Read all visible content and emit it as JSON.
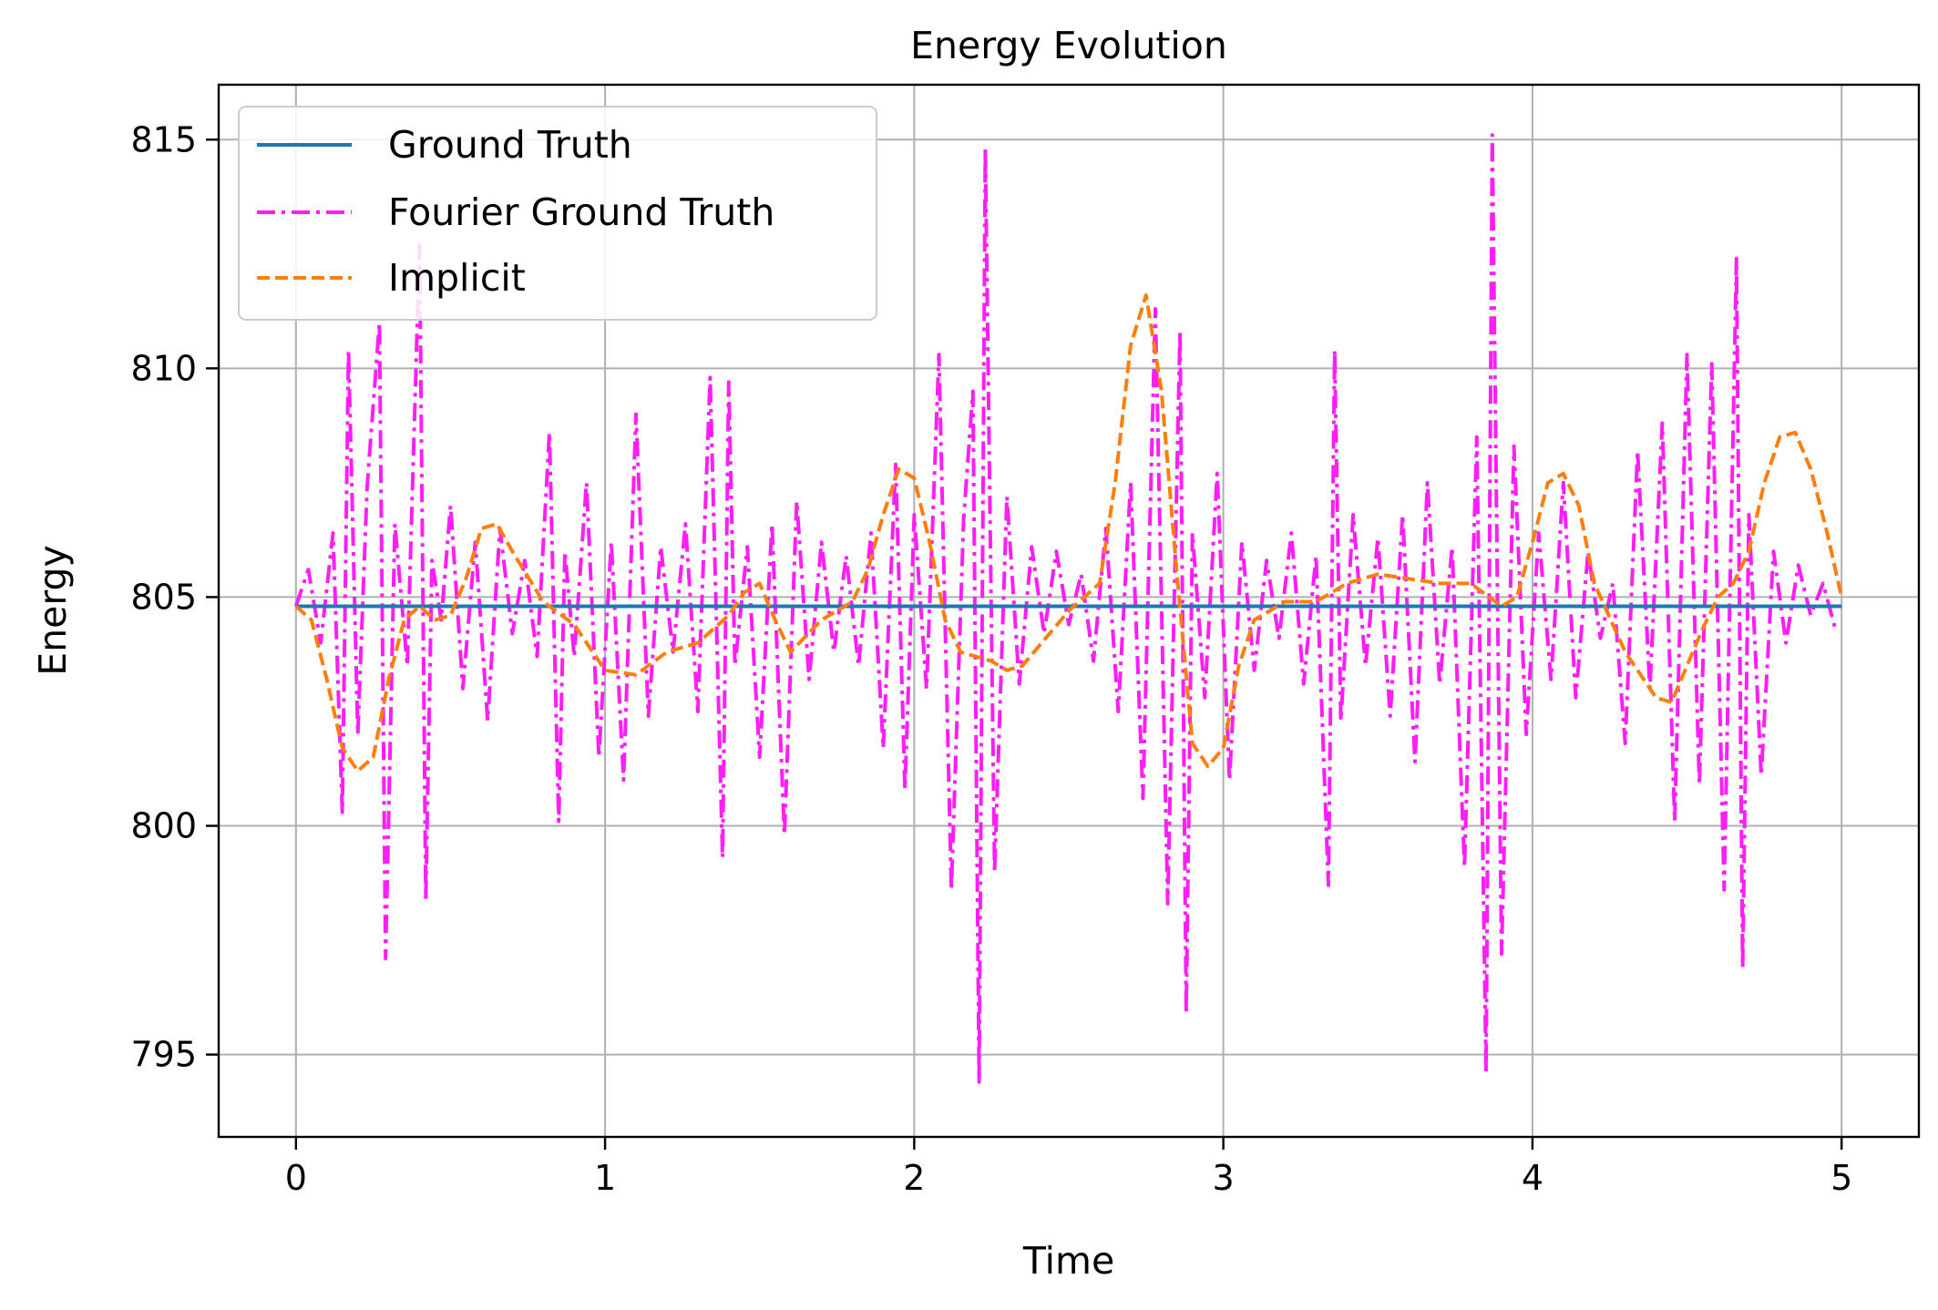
{
  "chart_data": {
    "type": "line",
    "title": "Energy Evolution",
    "xlabel": "Time",
    "ylabel": "Energy",
    "xlim": [
      -0.25,
      5.25
    ],
    "ylim": [
      793.2,
      816.2
    ],
    "xticks": [
      0,
      1,
      2,
      3,
      4,
      5
    ],
    "yticks": [
      795,
      800,
      805,
      810,
      815
    ],
    "grid": true,
    "legend_position": "upper-left",
    "series": [
      {
        "name": "Ground Truth",
        "color": "#1f77b4",
        "style": "solid",
        "x": [
          0,
          5
        ],
        "y": [
          804.8,
          804.8
        ]
      },
      {
        "name": "Fourier Ground Truth",
        "color": "#ff1ef5",
        "style": "dashdot",
        "x": [
          0.0,
          0.04,
          0.08,
          0.12,
          0.15,
          0.17,
          0.2,
          0.23,
          0.27,
          0.29,
          0.32,
          0.36,
          0.4,
          0.42,
          0.44,
          0.47,
          0.5,
          0.54,
          0.58,
          0.62,
          0.66,
          0.7,
          0.74,
          0.78,
          0.82,
          0.85,
          0.87,
          0.9,
          0.94,
          0.98,
          1.02,
          1.06,
          1.1,
          1.14,
          1.18,
          1.22,
          1.26,
          1.3,
          1.34,
          1.38,
          1.4,
          1.42,
          1.46,
          1.5,
          1.54,
          1.58,
          1.62,
          1.66,
          1.7,
          1.74,
          1.78,
          1.82,
          1.86,
          1.9,
          1.94,
          1.97,
          2.0,
          2.04,
          2.08,
          2.12,
          2.16,
          2.19,
          2.21,
          2.23,
          2.26,
          2.3,
          2.34,
          2.38,
          2.42,
          2.46,
          2.5,
          2.54,
          2.58,
          2.62,
          2.66,
          2.7,
          2.74,
          2.78,
          2.82,
          2.86,
          2.88,
          2.9,
          2.94,
          2.98,
          3.02,
          3.06,
          3.1,
          3.14,
          3.18,
          3.22,
          3.26,
          3.3,
          3.34,
          3.36,
          3.38,
          3.42,
          3.46,
          3.5,
          3.54,
          3.58,
          3.62,
          3.66,
          3.7,
          3.74,
          3.78,
          3.82,
          3.85,
          3.87,
          3.9,
          3.94,
          3.98,
          4.02,
          4.06,
          4.1,
          4.14,
          4.18,
          4.22,
          4.26,
          4.3,
          4.34,
          4.38,
          4.42,
          4.46,
          4.5,
          4.54,
          4.58,
          4.62,
          4.66,
          4.68,
          4.7,
          4.74,
          4.78,
          4.82,
          4.86,
          4.9,
          4.94,
          4.98
        ],
        "y": [
          804.8,
          805.6,
          804.0,
          806.4,
          800.3,
          810.4,
          802.0,
          807.4,
          811.0,
          797.1,
          806.6,
          803.5,
          812.7,
          798.4,
          805.8,
          804.5,
          807.0,
          803.0,
          806.2,
          802.3,
          806.5,
          804.2,
          805.8,
          803.7,
          808.6,
          800.1,
          806.0,
          803.7,
          807.5,
          801.5,
          806.2,
          801.0,
          809.0,
          802.4,
          806.1,
          803.8,
          806.6,
          802.5,
          809.8,
          799.3,
          809.7,
          803.5,
          806.1,
          801.5,
          806.6,
          799.8,
          807.1,
          803.2,
          806.2,
          803.8,
          805.9,
          803.5,
          806.4,
          801.7,
          807.9,
          800.8,
          806.8,
          803.0,
          810.3,
          798.6,
          806.7,
          809.5,
          794.4,
          814.8,
          799.0,
          807.2,
          803.1,
          806.1,
          804.2,
          806.0,
          804.4,
          805.5,
          803.6,
          806.5,
          802.5,
          807.5,
          800.6,
          811.3,
          798.3,
          810.8,
          795.9,
          806.4,
          802.8,
          807.7,
          801.0,
          806.2,
          803.4,
          805.8,
          804.1,
          806.4,
          803.1,
          805.9,
          798.7,
          810.4,
          802.3,
          806.8,
          803.5,
          806.3,
          802.4,
          806.8,
          801.4,
          807.5,
          803.1,
          806.1,
          799.1,
          808.5,
          794.6,
          815.1,
          797.2,
          808.3,
          802.0,
          806.4,
          803.2,
          807.5,
          802.8,
          806.0,
          804.1,
          805.3,
          801.8,
          808.2,
          803.0,
          808.8,
          800.1,
          810.3,
          800.9,
          810.1,
          798.6,
          812.4,
          796.9,
          806.8,
          801.1,
          806.0,
          804.0,
          805.7,
          804.6,
          805.3,
          804.3
        ]
      },
      {
        "name": "Implicit",
        "color": "#ff7f0e",
        "style": "dashed",
        "x": [
          0.0,
          0.05,
          0.1,
          0.15,
          0.2,
          0.25,
          0.3,
          0.35,
          0.4,
          0.45,
          0.5,
          0.55,
          0.6,
          0.65,
          0.7,
          0.8,
          0.9,
          1.0,
          1.1,
          1.2,
          1.3,
          1.4,
          1.45,
          1.5,
          1.55,
          1.6,
          1.7,
          1.8,
          1.85,
          1.9,
          1.95,
          2.0,
          2.05,
          2.1,
          2.15,
          2.2,
          2.25,
          2.3,
          2.35,
          2.4,
          2.5,
          2.6,
          2.65,
          2.7,
          2.75,
          2.8,
          2.85,
          2.9,
          2.95,
          3.0,
          3.05,
          3.1,
          3.2,
          3.3,
          3.4,
          3.5,
          3.6,
          3.7,
          3.8,
          3.9,
          3.95,
          4.0,
          4.05,
          4.1,
          4.15,
          4.2,
          4.3,
          4.4,
          4.45,
          4.5,
          4.55,
          4.6,
          4.65,
          4.7,
          4.75,
          4.8,
          4.85,
          4.9,
          4.95,
          5.0
        ],
        "y": [
          804.8,
          804.5,
          803.2,
          801.7,
          801.2,
          801.5,
          803.2,
          804.5,
          804.8,
          804.5,
          804.6,
          805.4,
          806.5,
          806.6,
          806.0,
          804.9,
          804.4,
          803.4,
          803.3,
          803.8,
          804.0,
          804.6,
          805.1,
          805.3,
          804.5,
          803.8,
          804.5,
          804.9,
          805.6,
          806.8,
          807.8,
          807.6,
          806.2,
          804.5,
          803.8,
          803.7,
          803.6,
          803.4,
          803.5,
          803.9,
          804.7,
          805.3,
          807.5,
          810.5,
          811.6,
          809.5,
          805.5,
          801.8,
          801.3,
          801.7,
          803.5,
          804.5,
          804.9,
          804.9,
          805.3,
          805.5,
          805.4,
          805.3,
          805.3,
          804.8,
          805.0,
          806.2,
          807.5,
          807.7,
          807.0,
          805.3,
          803.8,
          802.8,
          802.7,
          803.5,
          804.3,
          805.0,
          805.3,
          806.0,
          807.5,
          808.5,
          808.6,
          807.8,
          806.5,
          805.0
        ]
      }
    ]
  }
}
